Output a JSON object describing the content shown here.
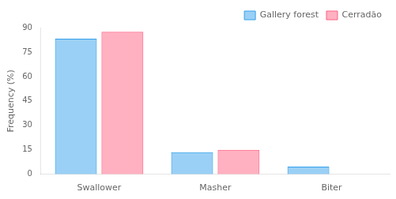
{
  "chart_data": {
    "type": "bar",
    "categories": [
      "Swallower",
      "Masher",
      "Biter"
    ],
    "series": [
      {
        "name": "Gallery forest",
        "values": [
          83.2,
          13.6,
          4.8
        ]
      },
      {
        "name": "Cerradão",
        "values": [
          87.5,
          15.0,
          0.0
        ]
      }
    ],
    "ylabel": "Frequency (%)",
    "ylim": [
      0,
      90
    ],
    "yticks": [
      0,
      15,
      30,
      45,
      60,
      75,
      90
    ],
    "grid": false,
    "legend": "upper right"
  }
}
